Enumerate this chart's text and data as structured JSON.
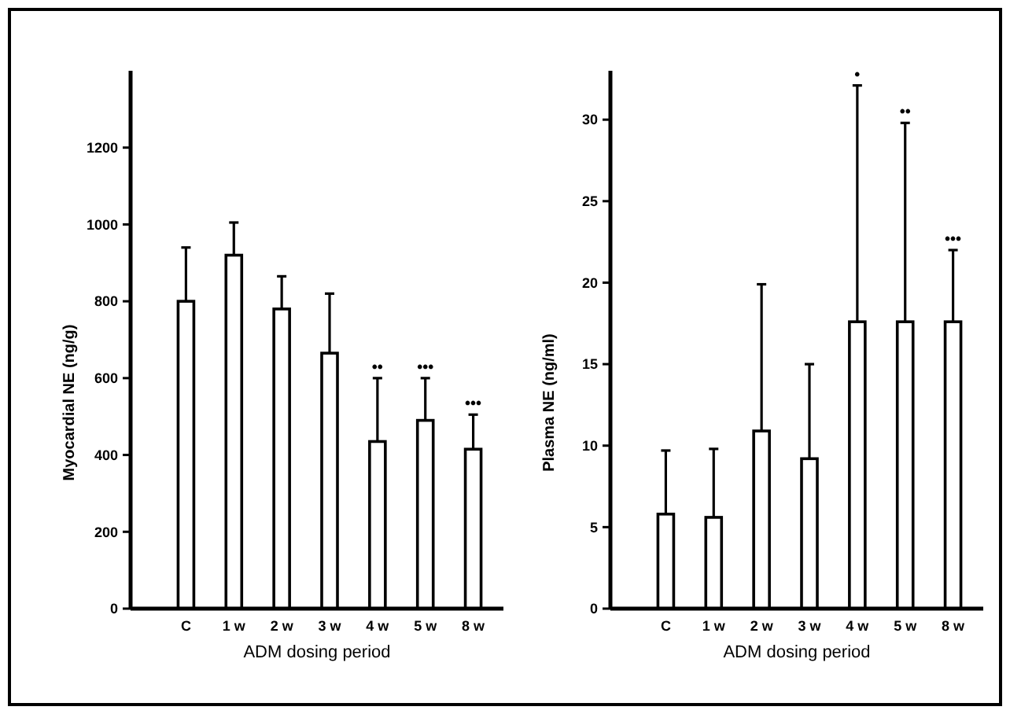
{
  "chart_data": [
    {
      "type": "bar",
      "categories": [
        "C",
        "1 w",
        "2 w",
        "3 w",
        "4 w",
        "5 w",
        "8 w"
      ],
      "values": [
        800,
        920,
        780,
        665,
        435,
        490,
        415
      ],
      "errors": [
        [
          800,
          940
        ],
        [
          920,
          1005
        ],
        [
          780,
          865
        ],
        [
          665,
          820
        ],
        [
          435,
          600
        ],
        [
          490,
          600
        ],
        [
          415,
          505
        ]
      ],
      "color": "#ffffff",
      "xlabel": "ADM dosing period",
      "ylabel": "Myocardial NE (ng/g)",
      "ylim": [
        0,
        1400
      ],
      "yticks": [
        0,
        200,
        400,
        600,
        800,
        1000,
        1200
      ],
      "grid": false,
      "annotations": [
        {
          "text": "••",
          "x": "4 w",
          "y": 600
        },
        {
          "text": "•••",
          "x": "5 w",
          "y": 600
        },
        {
          "text": "•••",
          "x": "8 w",
          "y": 505
        }
      ]
    },
    {
      "type": "bar",
      "categories": [
        "C",
        "1 w",
        "2 w",
        "3 w",
        "4 w",
        "5 w",
        "8 w"
      ],
      "values": [
        5.8,
        5.6,
        10.9,
        9.2,
        17.6,
        17.6,
        17.6
      ],
      "errors": [
        [
          5.8,
          9.7
        ],
        [
          5.6,
          9.8
        ],
        [
          10.9,
          19.9
        ],
        [
          9.2,
          15.0
        ],
        [
          17.6,
          32.1
        ],
        [
          17.6,
          29.8
        ],
        [
          17.6,
          22.0
        ]
      ],
      "color": "#ffffff",
      "xlabel": "ADM dosing period",
      "ylabel": "Plasma NE (ng/ml)",
      "ylim": [
        0,
        33
      ],
      "yticks": [
        0,
        5,
        10,
        15,
        20,
        25,
        30
      ],
      "grid": false,
      "annotations": [
        {
          "text": "•",
          "x": "4 w",
          "y": 32.1
        },
        {
          "text": "••",
          "x": "5 w",
          "y": 29.8
        },
        {
          "text": "•••",
          "x": "8 w",
          "y": 22.0
        }
      ]
    }
  ]
}
